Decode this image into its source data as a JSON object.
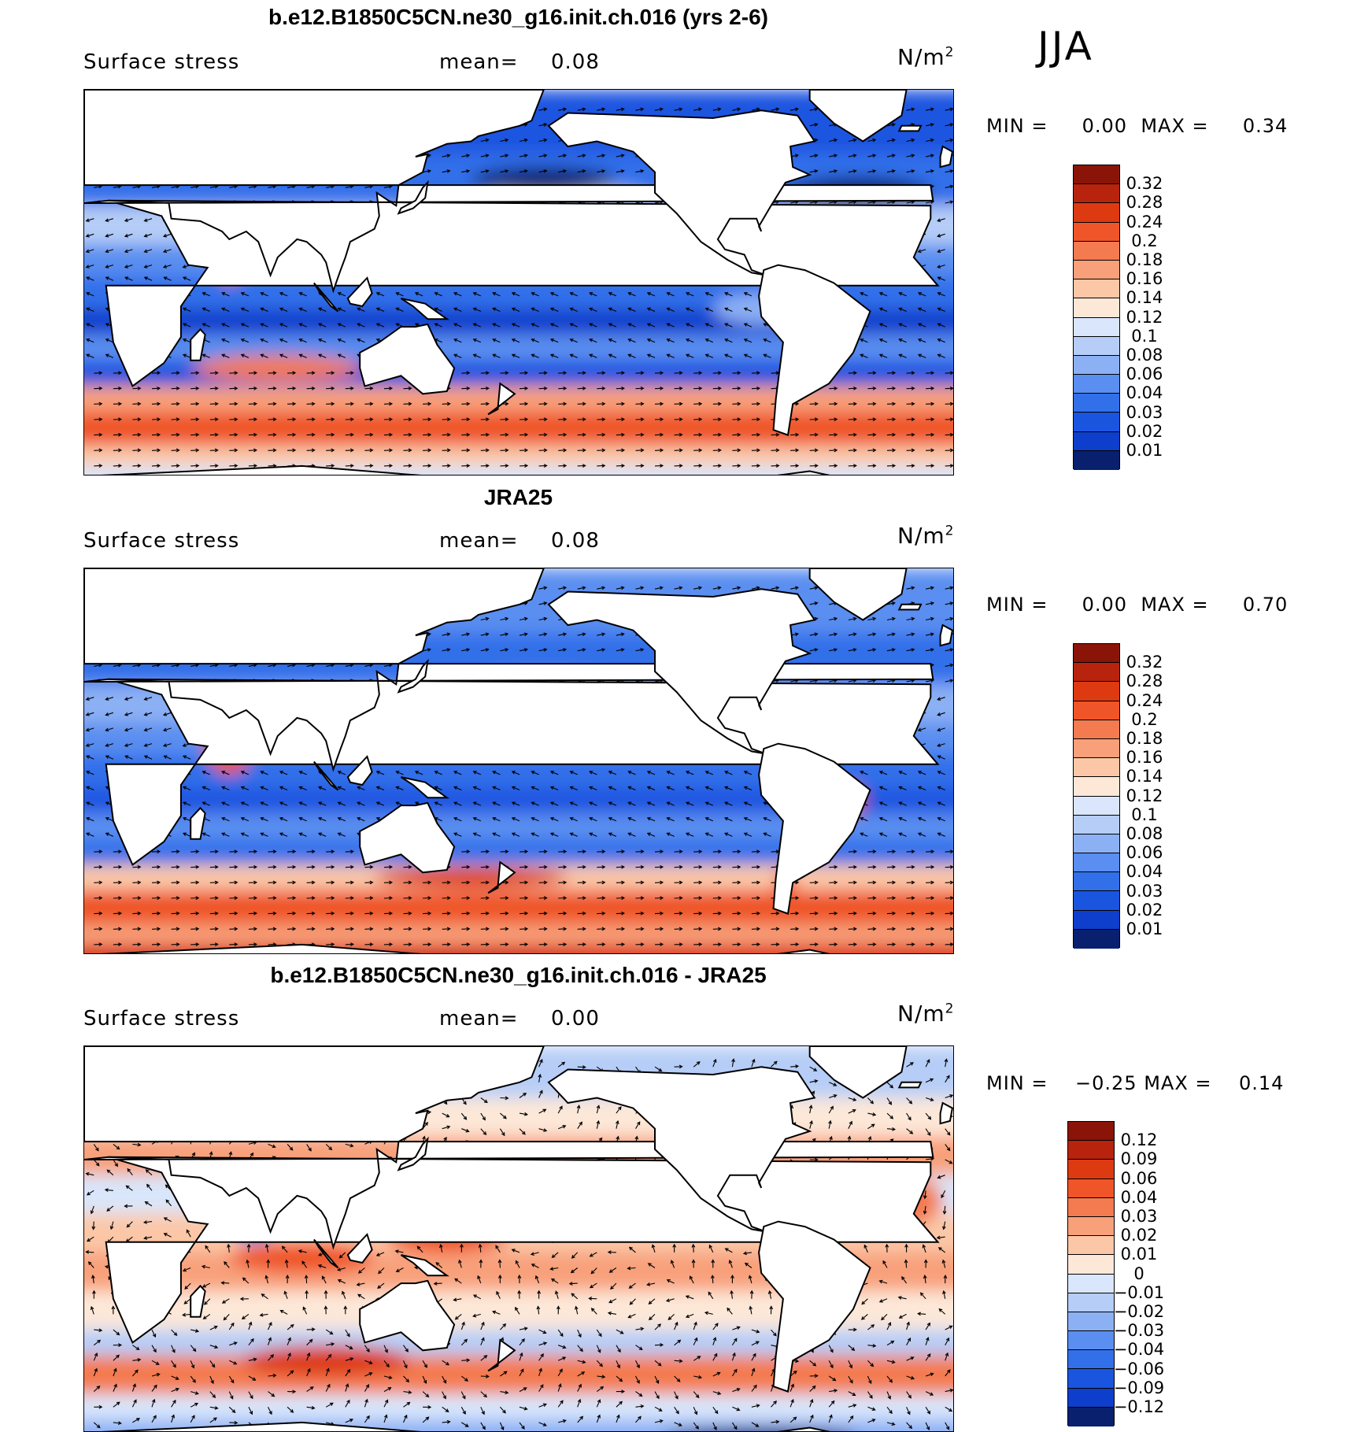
{
  "season": "JJA",
  "colors": {
    "base": [
      "#08206e",
      "#0b2fa0",
      "#0d3fcc",
      "#1a55e0",
      "#3270ea",
      "#5a8ef0",
      "#8cb0f4",
      "#b5cdf7",
      "#d9e6fb",
      "#fde8d8",
      "#fbc7a7",
      "#f8a07a",
      "#f47a4f",
      "#ef5528",
      "#dd3a12",
      "#b7230c",
      "#8a1408"
    ],
    "diff": [
      "#08206e",
      "#0b2fa0",
      "#0d3fcc",
      "#1a55e0",
      "#3270ea",
      "#5a8ef0",
      "#8cb0f4",
      "#b5cdf7",
      "#d9e6fb",
      "#fde8d8",
      "#fbc7a7",
      "#f8a07a",
      "#f47a4f",
      "#ef5528",
      "#dd3a12",
      "#b7230c",
      "#8a1408"
    ],
    "land": "#ffffff",
    "coast": "#000000"
  },
  "panels": [
    {
      "title": "b.e12.B1850C5CN.ne30_g16.init.ch.016 (yrs 2-6)",
      "variable": "Surface stress",
      "mean_label": "mean=",
      "mean_value": "0.08",
      "units": "N/m",
      "units_sup": "2",
      "min_label": "MIN =",
      "min_value": "0.00",
      "max_label": "MAX =",
      "max_value": "0.34",
      "colorbar_ticks": [
        "0.32",
        "0.28",
        "0.24",
        "0.2",
        "0.18",
        "0.16",
        "0.14",
        "0.12",
        "0.1",
        "0.08",
        "0.06",
        "0.04",
        "0.03",
        "0.02",
        "0.01"
      ]
    },
    {
      "title": "JRA25",
      "variable": "Surface stress",
      "mean_label": "mean=",
      "mean_value": "0.08",
      "units": "N/m",
      "units_sup": "2",
      "min_label": "MIN =",
      "min_value": "0.00",
      "max_label": "MAX =",
      "max_value": "0.70",
      "colorbar_ticks": [
        "0.32",
        "0.28",
        "0.24",
        "0.2",
        "0.18",
        "0.16",
        "0.14",
        "0.12",
        "0.1",
        "0.08",
        "0.06",
        "0.04",
        "0.03",
        "0.02",
        "0.01"
      ]
    },
    {
      "title": "b.e12.B1850C5CN.ne30_g16.init.ch.016 - JRA25",
      "variable": "Surface stress",
      "mean_label": "mean=",
      "mean_value": "0.00",
      "units": "N/m",
      "units_sup": "2",
      "min_label": "MIN =",
      "min_value": "−0.25",
      "max_label": "MAX =",
      "max_value": "0.14",
      "colorbar_ticks": [
        "0.12",
        "0.09",
        "0.06",
        "0.04",
        "0.03",
        "0.02",
        "0.01",
        "0",
        "−0.01",
        "−0.02",
        "−0.03",
        "−0.04",
        "−0.06",
        "−0.09",
        "−0.12"
      ]
    }
  ]
}
